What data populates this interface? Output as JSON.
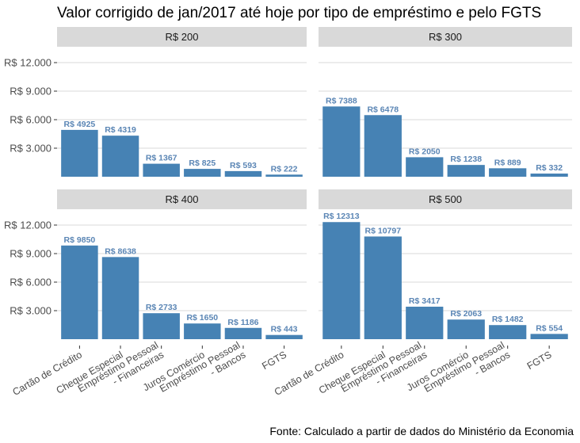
{
  "chart_data": {
    "type": "bar",
    "title": "Valor corrigido de jan/2017 até hoje por tipo de empréstimo e pelo FGTS",
    "caption": "Fonte: Calculado a partir de dados do Ministério da Economia",
    "xlabel": "",
    "ylabel": "",
    "ylim": [
      0,
      12000
    ],
    "y_ticks": [
      3000,
      6000,
      9000,
      12000
    ],
    "y_tick_labels": [
      "R$ 3.000",
      "R$ 6.000",
      "R$ 9.000",
      "R$ 12.000"
    ],
    "grid": true,
    "bar_color": "#4682b4",
    "label_color": "#5b86b5",
    "strip_color": "#d9d9d9",
    "categories": [
      "Cartão de Crédito",
      "Cheque Especial",
      "Empréstimo Pessoal - Financeiras",
      "Juros Comércio",
      "Empréstimo Pessoal - Bancos",
      "FGTS"
    ],
    "category_label_lines": [
      [
        "Cartão de Crédito"
      ],
      [
        "Cheque Especial"
      ],
      [
        "Empréstimo Pessoal",
        "- Financeiras"
      ],
      [
        "Juros Comércio"
      ],
      [
        "Empréstimo Pessoal",
        "- Bancos"
      ],
      [
        "FGTS"
      ]
    ],
    "facets": [
      {
        "label": "R$ 200",
        "values": [
          4925,
          4319,
          1367,
          825,
          593,
          222
        ],
        "value_labels": [
          "R$ 4925",
          "R$ 4319",
          "R$ 1367",
          "R$ 825",
          "R$ 593",
          "R$ 222"
        ]
      },
      {
        "label": "R$ 300",
        "values": [
          7388,
          6478,
          2050,
          1238,
          889,
          332
        ],
        "value_labels": [
          "R$ 7388",
          "R$ 6478",
          "R$ 2050",
          "R$ 1238",
          "R$ 889",
          "R$ 332"
        ]
      },
      {
        "label": "R$ 400",
        "values": [
          9850,
          8638,
          2733,
          1650,
          1186,
          443
        ],
        "value_labels": [
          "R$ 9850",
          "R$ 8638",
          "R$ 2733",
          "R$ 1650",
          "R$ 1186",
          "R$ 443"
        ]
      },
      {
        "label": "R$ 500",
        "values": [
          12313,
          10797,
          3417,
          2063,
          1482,
          554
        ],
        "value_labels": [
          "R$ 12313",
          "R$ 10797",
          "R$ 3417",
          "R$ 2063",
          "R$ 1482",
          "R$ 554"
        ]
      }
    ]
  }
}
